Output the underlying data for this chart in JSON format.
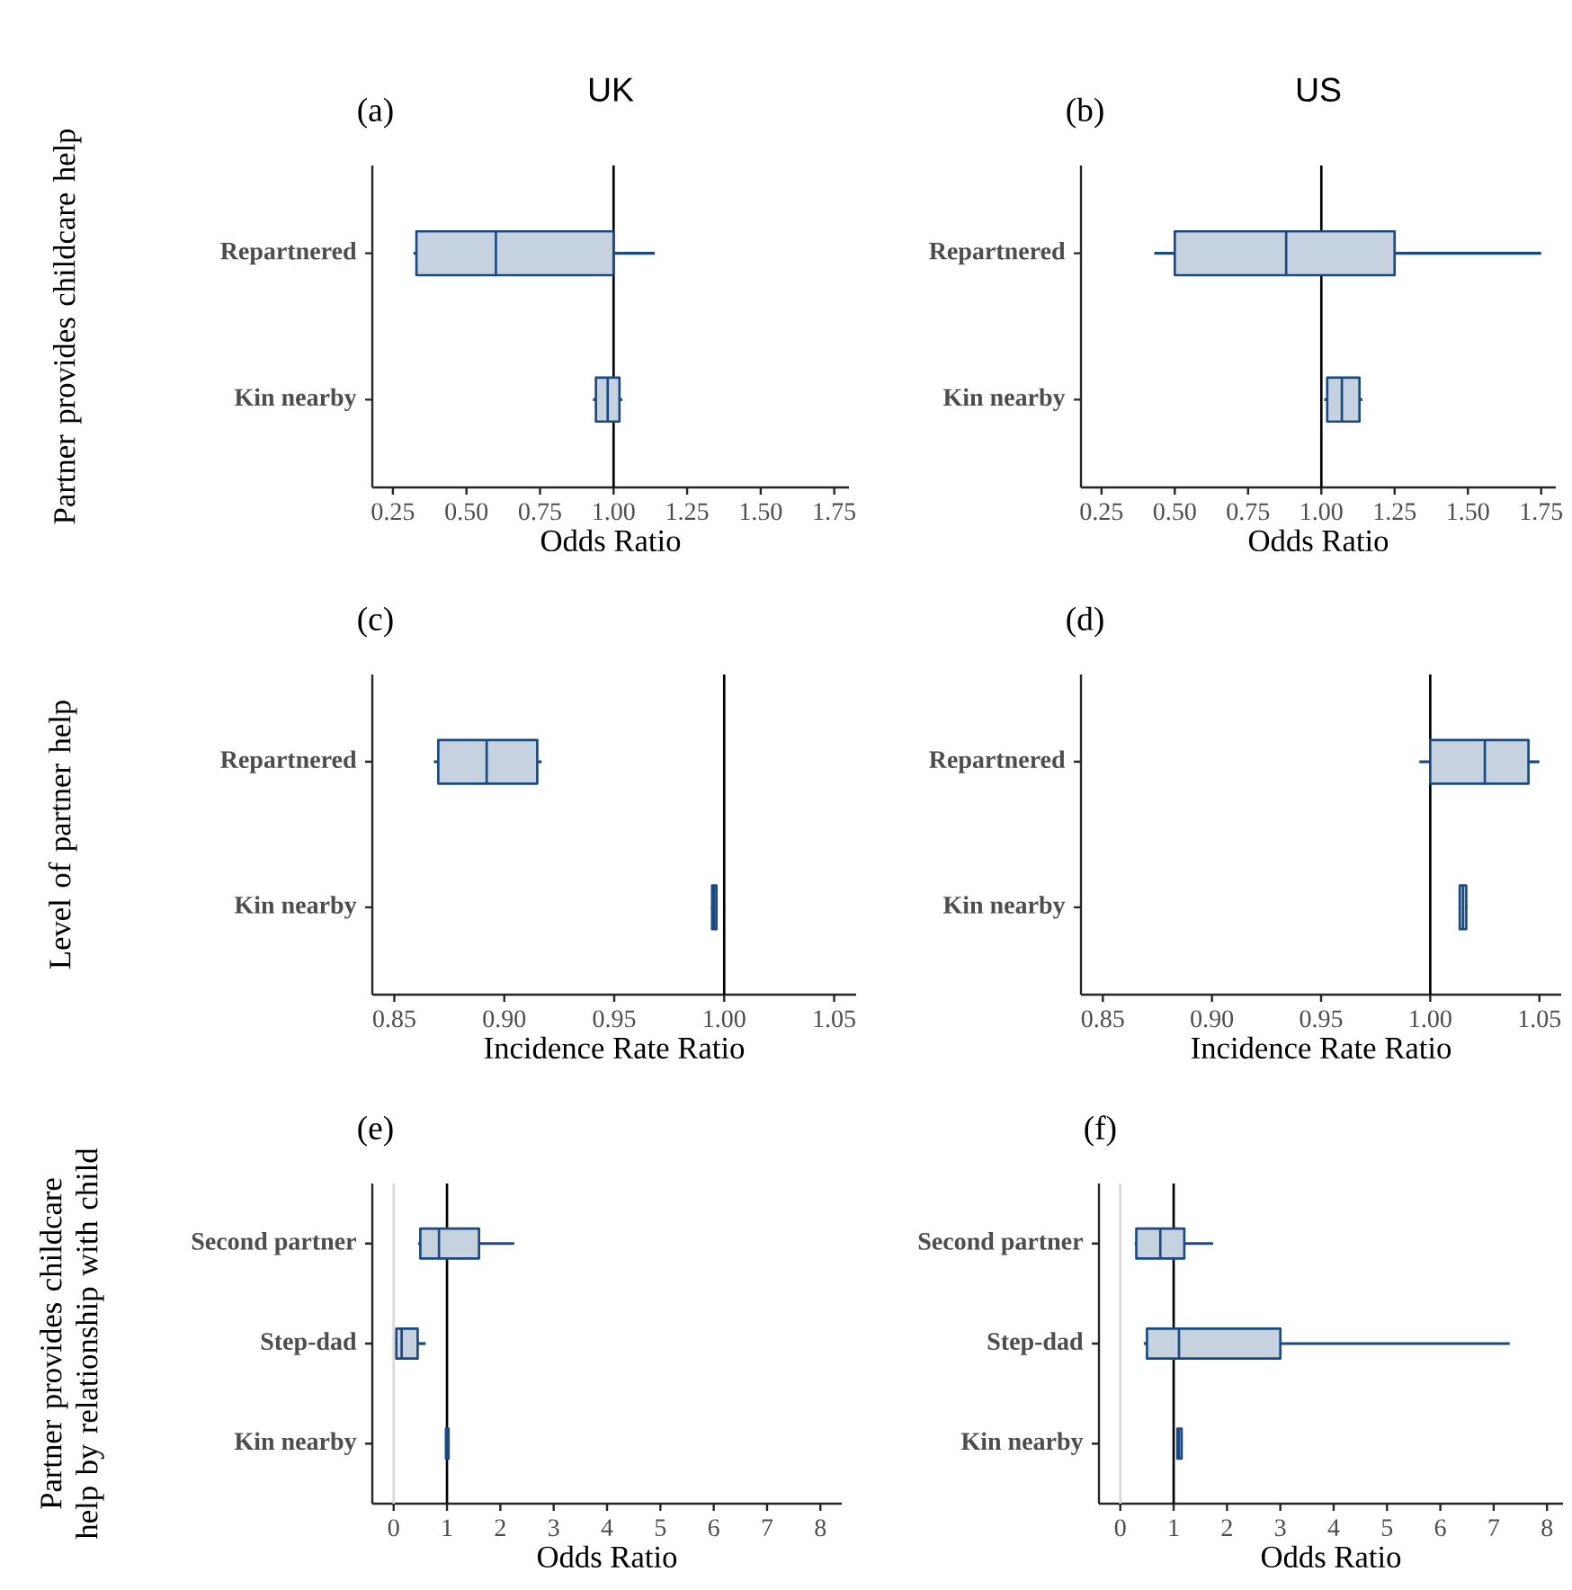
{
  "chart_data": [
    {
      "type": "box",
      "orientation": "horizontal",
      "title": "(a)",
      "ylabel": "Partner provides childcare help",
      "xlabel": "Odds Ratio",
      "annotations": [
        "UK"
      ],
      "categories": [
        "Repartnered",
        "Kin nearby"
      ],
      "series": [
        {
          "color": "#1a4a7f",
          "boxes": [
            {
              "low": 0.32,
              "q1": 0.33,
              "median": 0.6,
              "q3": 1.0,
              "high": 1.14
            },
            {
              "low": 0.93,
              "q1": 0.94,
              "median": 0.98,
              "q3": 1.02,
              "high": 1.03
            }
          ]
        }
      ],
      "xlim": [
        0.18,
        1.8
      ],
      "xticks": [
        {
          "value": 0.25,
          "label": "0.25"
        },
        {
          "value": 0.5,
          "label": "0.50"
        },
        {
          "value": 0.75,
          "label": "0.75"
        },
        {
          "value": 1,
          "label": "1.00"
        },
        {
          "value": 1.25,
          "label": "1.25"
        },
        {
          "value": 1.5,
          "label": "1.50"
        },
        {
          "value": 1.75,
          "label": "1.75"
        }
      ],
      "ref_lines": [
        {
          "axis": "x",
          "value": 1,
          "color": "#000000"
        }
      ]
    },
    {
      "type": "box",
      "orientation": "horizontal",
      "title": "(b)",
      "xlabel": "Odds Ratio",
      "annotations": [
        "US"
      ],
      "categories": [
        "Repartnered",
        "Kin nearby"
      ],
      "series": [
        {
          "color": "#1a4a7f",
          "boxes": [
            {
              "low": 0.43,
              "q1": 0.5,
              "median": 0.88,
              "q3": 1.25,
              "high": 1.75
            },
            {
              "low": 1.01,
              "q1": 1.02,
              "median": 1.07,
              "q3": 1.13,
              "high": 1.14
            }
          ]
        }
      ],
      "xlim": [
        0.18,
        1.8
      ],
      "xticks": [
        {
          "value": 0.25,
          "label": "0.25"
        },
        {
          "value": 0.5,
          "label": "0.50"
        },
        {
          "value": 0.75,
          "label": "0.75"
        },
        {
          "value": 1,
          "label": "1.00"
        },
        {
          "value": 1.25,
          "label": "1.25"
        },
        {
          "value": 1.5,
          "label": "1.50"
        },
        {
          "value": 1.75,
          "label": "1.75"
        }
      ],
      "ref_lines": [
        {
          "axis": "x",
          "value": 1,
          "color": "#000000"
        }
      ]
    },
    {
      "type": "box",
      "orientation": "horizontal",
      "title": "(c)",
      "ylabel": "Level of partner help",
      "xlabel": "Incidence Rate Ratio",
      "categories": [
        "Repartnered",
        "Kin nearby"
      ],
      "series": [
        {
          "color": "#1a4a7f",
          "boxes": [
            {
              "low": 0.868,
              "q1": 0.87,
              "median": 0.892,
              "q3": 0.915,
              "high": 0.917
            },
            {
              "low": 0.994,
              "q1": 0.9945,
              "median": 0.9955,
              "q3": 0.9965,
              "high": 0.997
            }
          ]
        }
      ],
      "xlim": [
        0.84,
        1.06
      ],
      "xticks": [
        {
          "value": 0.85,
          "label": "0.85"
        },
        {
          "value": 0.9,
          "label": "0.90"
        },
        {
          "value": 0.95,
          "label": "0.95"
        },
        {
          "value": 1,
          "label": "1.00"
        },
        {
          "value": 1.05,
          "label": "1.05"
        }
      ],
      "ref_lines": [
        {
          "axis": "x",
          "value": 1,
          "color": "#000000"
        }
      ]
    },
    {
      "type": "box",
      "orientation": "horizontal",
      "title": "(d)",
      "xlabel": "Incidence Rate Ratio",
      "categories": [
        "Repartnered",
        "Kin nearby"
      ],
      "series": [
        {
          "color": "#1a4a7f",
          "boxes": [
            {
              "low": 0.995,
              "q1": 1.0,
              "median": 1.025,
              "q3": 1.045,
              "high": 1.05
            },
            {
              "low": 1.013,
              "q1": 1.0135,
              "median": 1.015,
              "q3": 1.0165,
              "high": 1.017
            }
          ]
        }
      ],
      "xlim": [
        0.84,
        1.06
      ],
      "xticks": [
        {
          "value": 0.85,
          "label": "0.85"
        },
        {
          "value": 0.9,
          "label": "0.90"
        },
        {
          "value": 0.95,
          "label": "0.95"
        },
        {
          "value": 1,
          "label": "1.00"
        },
        {
          "value": 1.05,
          "label": "1.05"
        }
      ],
      "ref_lines": [
        {
          "axis": "x",
          "value": 1,
          "color": "#000000"
        }
      ]
    },
    {
      "type": "box",
      "orientation": "horizontal",
      "title": "(e)",
      "ylabel": "Partner provides childcare help by relationship with child",
      "xlabel": "Odds Ratio",
      "categories": [
        "Second partner",
        "Step-dad",
        "Kin nearby"
      ],
      "series": [
        {
          "color": "#1a4a7f",
          "boxes": [
            {
              "low": 0.46,
              "q1": 0.5,
              "median": 0.85,
              "q3": 1.6,
              "high": 2.26
            },
            {
              "low": 0.03,
              "q1": 0.05,
              "median": 0.15,
              "q3": 0.45,
              "high": 0.6
            },
            {
              "low": 0.97,
              "q1": 0.98,
              "median": 1.0,
              "q3": 1.03,
              "high": 1.05
            }
          ]
        }
      ],
      "xlim": [
        -0.4,
        8.4
      ],
      "xticks": [
        0,
        1,
        2,
        3,
        4,
        5,
        6,
        7,
        8
      ],
      "ref_lines": [
        {
          "axis": "x",
          "value": 0,
          "color": "#d9d9d9"
        },
        {
          "axis": "x",
          "value": 1,
          "color": "#000000"
        }
      ]
    },
    {
      "type": "box",
      "orientation": "horizontal",
      "title": "(f)",
      "xlabel": "Odds Ratio",
      "categories": [
        "Second partner",
        "Step-dad",
        "Kin nearby"
      ],
      "series": [
        {
          "color": "#1a4a7f",
          "boxes": [
            {
              "low": 0.27,
              "q1": 0.3,
              "median": 0.75,
              "q3": 1.2,
              "high": 1.74
            },
            {
              "low": 0.44,
              "q1": 0.5,
              "median": 1.1,
              "q3": 3.0,
              "high": 7.3
            },
            {
              "low": 1.05,
              "q1": 1.07,
              "median": 1.1,
              "q3": 1.15,
              "high": 1.17
            }
          ]
        }
      ],
      "xlim": [
        -0.4,
        8.3
      ],
      "xticks": [
        0,
        1,
        2,
        3,
        4,
        5,
        6,
        7,
        8
      ],
      "ref_lines": [
        {
          "axis": "x",
          "value": 0,
          "color": "#d9d9d9"
        },
        {
          "axis": "x",
          "value": 1,
          "color": "#000000"
        }
      ]
    }
  ]
}
